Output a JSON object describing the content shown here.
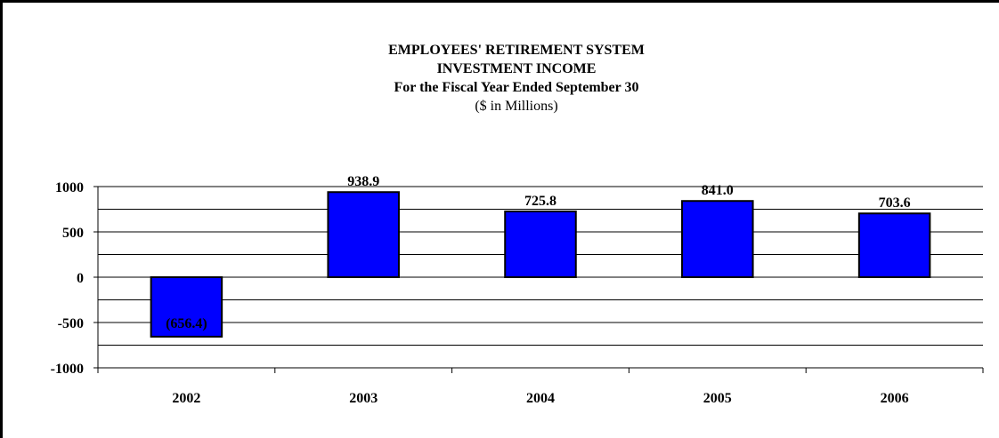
{
  "chart_data": {
    "type": "bar",
    "title_lines": [
      "EMPLOYEES' RETIREMENT SYSTEM",
      "INVESTMENT INCOME",
      "For the Fiscal Year Ended September 30"
    ],
    "subtitle": "($ in Millions)",
    "categories": [
      "2002",
      "2003",
      "2004",
      "2005",
      "2006"
    ],
    "values": [
      -656.4,
      938.9,
      725.8,
      841.0,
      703.6
    ],
    "data_labels": [
      "(656.4)",
      "938.9",
      "725.8",
      "841.0",
      "703.6"
    ],
    "ylim": [
      -1000,
      1000
    ],
    "yticks": [
      1000,
      500,
      0,
      -500,
      -1000
    ],
    "ytick_labels": [
      "1000",
      "500",
      "0",
      "-500",
      "-1000"
    ],
    "minor_gridlines_every": 250,
    "grid": true,
    "bar_color": "#0000ff",
    "bar_edge_color": "#000000",
    "xlabel": "",
    "ylabel": ""
  }
}
